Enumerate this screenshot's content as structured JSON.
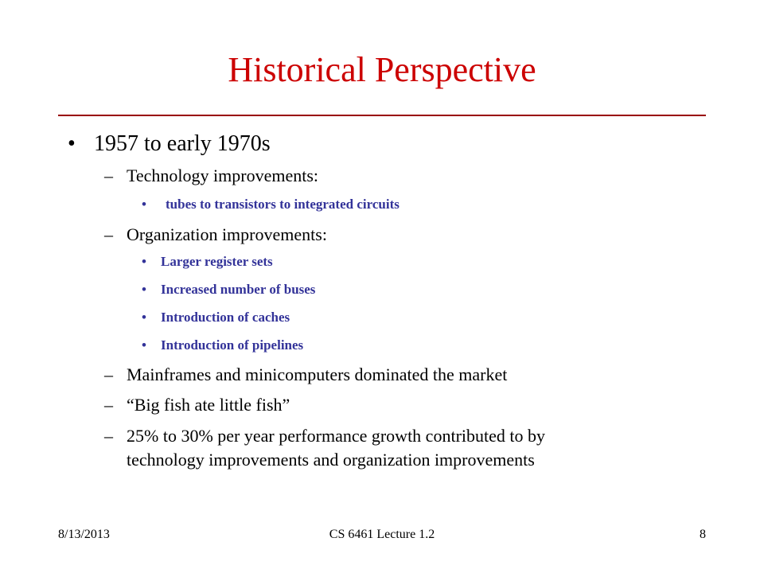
{
  "slide": {
    "title": "Historical Perspective",
    "bullets": {
      "l1_marker": "•",
      "dash": "–",
      "l3_marker": "•"
    },
    "items": {
      "period": "1957 to early 1970s",
      "tech_heading": "Technology improvements:",
      "tech_1": "tubes to transistors to integrated circuits",
      "org_heading": "Organization improvements:",
      "org_1": "Larger register sets",
      "org_2": "Increased number of buses",
      "org_3": "Introduction of caches",
      "org_4": "Introduction of pipelines",
      "market": "Mainframes and minicomputers dominated the market",
      "fish": "“Big fish ate little fish”",
      "growth_line1": "25% to 30% per year performance growth contributed to by",
      "growth_line2": "technology improvements and organization improvements"
    }
  },
  "footer": {
    "date": "8/13/2013",
    "course": "CS 6461 Lecture 1.2",
    "page": "8"
  },
  "colors": {
    "title": "#cc0000",
    "rule": "#990000",
    "sub_bullets": "#333399"
  }
}
